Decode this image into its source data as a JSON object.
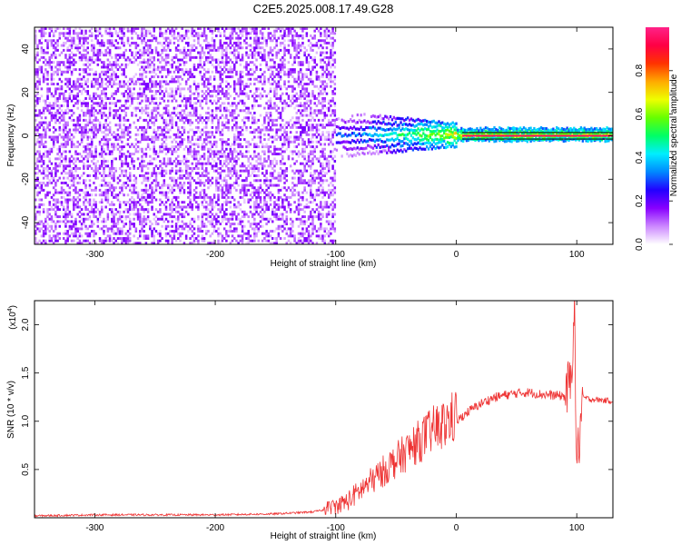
{
  "title": "C2E5.2025.008.17.49.G28",
  "chart_data": [
    {
      "type": "heatmap",
      "name": "spectrogram",
      "xlabel": "Height of straight line (km)",
      "ylabel": "Frequency (Hz)",
      "xlim": [
        -350,
        130
      ],
      "ylim": [
        -50,
        50
      ],
      "xticks": [
        -300,
        -200,
        -100,
        0,
        100
      ],
      "yticks": [
        -40,
        -20,
        0,
        20,
        40
      ],
      "colorbar": {
        "label": "Normalized spectral amplitude",
        "range": [
          0,
          1
        ],
        "ticks": [
          "0.0",
          "0.2",
          "0.4",
          "0.6",
          "0.8"
        ],
        "colors": [
          "#ffffff",
          "#cc88ff",
          "#8800ff",
          "#2200ff",
          "#0088ff",
          "#00eeff",
          "#00ff66",
          "#66ff00",
          "#eeff00",
          "#ffaa00",
          "#ff3300",
          "#ff0044",
          "#ff2288"
        ]
      },
      "features": {
        "broadband_noise_extent_km": [
          -350,
          -100
        ],
        "signal_band_km": [
          -100,
          130
        ],
        "signal_center_hz": 0,
        "carrier_line_hz": [
          1.5,
          -1.5
        ]
      }
    },
    {
      "type": "line",
      "name": "snr",
      "xlabel": "Height of straight line (km)",
      "ylabel": "SNR (10 * v/v)",
      "multiplier": "(x10",
      "multiplier_exp": "4",
      "xlim": [
        -350,
        130
      ],
      "ylim": [
        0,
        2.25
      ],
      "xticks": [
        -300,
        -200,
        -100,
        0,
        100
      ],
      "yticks": [
        "0.5",
        "1.0",
        "1.5",
        "2.0"
      ],
      "color": "#ee3333",
      "series": [
        {
          "x": [
            -350,
            -300,
            -250,
            -200,
            -150,
            -120,
            -100,
            -90,
            -80,
            -70,
            -60,
            -50,
            -40,
            -30,
            -20,
            -10,
            0,
            10,
            20,
            30,
            40,
            50,
            60,
            70,
            80,
            90,
            95,
            98,
            100,
            105,
            110,
            120,
            130
          ],
          "y": [
            0.02,
            0.03,
            0.03,
            0.03,
            0.04,
            0.06,
            0.1,
            0.15,
            0.25,
            0.35,
            0.45,
            0.55,
            0.65,
            0.75,
            0.85,
            0.9,
            1.0,
            1.1,
            1.18,
            1.24,
            1.27,
            1.29,
            1.3,
            1.28,
            1.27,
            1.26,
            1.4,
            2.2,
            0.5,
            1.25,
            1.23,
            1.22,
            1.21
          ]
        }
      ]
    }
  ]
}
